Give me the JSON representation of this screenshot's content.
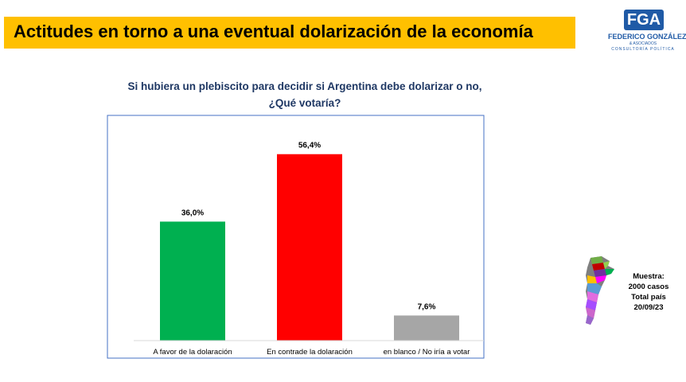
{
  "header": {
    "title": "Actitudes en torno a una eventual dolarización de la economía",
    "banner_color": "#ffc000"
  },
  "logo": {
    "letters": "FGA",
    "name": "FEDERICO GONZÁLEZ",
    "sub1": "& ASOCIADOS",
    "sub2": "CONSULTORÍA POLÍTICA",
    "color": "#1f5aa6"
  },
  "chart_data": {
    "type": "bar",
    "title_line1": "Si hubiera un plebiscito para decidir si Argentina debe dolarizar o no,",
    "title_line2": "¿Qué votaría?",
    "categories": [
      "A favor de la dolaración",
      "En contrade la dolaración",
      "en blanco / No iría a votar"
    ],
    "values": [
      36.0,
      56.4,
      7.6
    ],
    "value_labels": [
      "36,0%",
      "56,4%",
      "7,6%"
    ],
    "colors": [
      "#00b050",
      "#ff0000",
      "#a6a6a6"
    ],
    "ylim": [
      0,
      65
    ],
    "grid": false,
    "legend": "none"
  },
  "sample": {
    "line1": "Muestra:",
    "line2": "2000 casos",
    "line3": "Total país",
    "line4": "20/09/23"
  }
}
